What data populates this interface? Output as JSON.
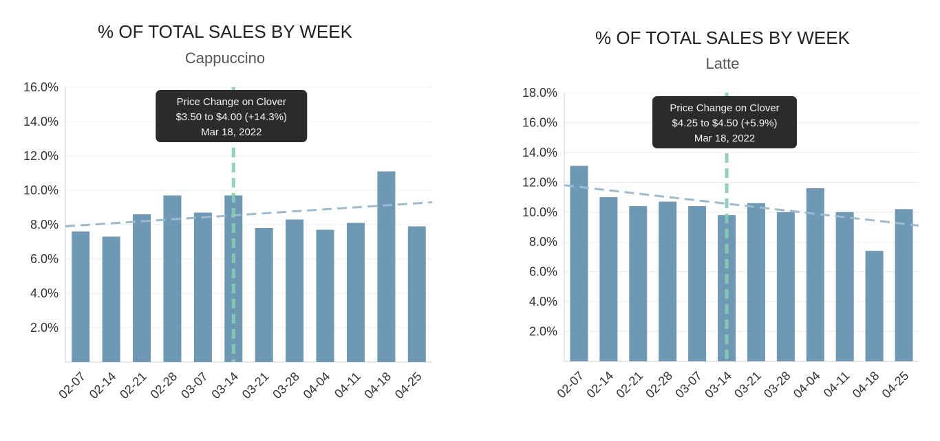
{
  "chart_data": [
    {
      "type": "bar",
      "title": "% OF TOTAL SALES BY WEEK",
      "subtitle": "Cappuccino",
      "categories": [
        "02-07",
        "02-14",
        "02-21",
        "02-28",
        "03-07",
        "03-14",
        "03-21",
        "03-28",
        "04-04",
        "04-11",
        "04-18",
        "04-25"
      ],
      "values": [
        7.6,
        7.3,
        8.6,
        9.7,
        8.7,
        9.7,
        7.8,
        8.3,
        7.7,
        8.1,
        11.1,
        7.9
      ],
      "ylim": [
        0,
        16
      ],
      "yticks": [
        "2.0%",
        "4.0%",
        "6.0%",
        "8.0%",
        "10.0%",
        "12.0%",
        "14.0%",
        "16.0%"
      ],
      "trendline": [
        7.9,
        9.3
      ],
      "marker_category": "03-14",
      "annotation": {
        "line1": "Price Change on Clover",
        "line2": "$3.50 to $4.00 (+14.3%)",
        "line3": "Mar 18, 2022"
      }
    },
    {
      "type": "bar",
      "title": "% OF TOTAL SALES BY WEEK",
      "subtitle": "Latte",
      "categories": [
        "02-07",
        "02-14",
        "02-21",
        "02-28",
        "03-07",
        "03-14",
        "03-21",
        "03-28",
        "04-04",
        "04-11",
        "04-18",
        "04-25"
      ],
      "values": [
        13.1,
        11.0,
        10.4,
        10.7,
        10.4,
        9.8,
        10.6,
        10.0,
        11.6,
        10.0,
        7.4,
        10.2
      ],
      "ylim": [
        0,
        18
      ],
      "yticks": [
        "2.0%",
        "4.0%",
        "6.0%",
        "8.0%",
        "10.0%",
        "12.0%",
        "14.0%",
        "16.0%",
        "18.0%"
      ],
      "trendline": [
        11.8,
        9.1
      ],
      "marker_category": "03-14",
      "annotation": {
        "line1": "Price Change on Clover",
        "line2": "$4.25 to $4.50 (+5.9%)",
        "line3": "Mar 18, 2022"
      }
    }
  ],
  "colors": {
    "bar": "#6f98b4",
    "trendline": "#9dbbd0",
    "marker": "#86cdb3",
    "tooltip": "#2b2b2b"
  }
}
